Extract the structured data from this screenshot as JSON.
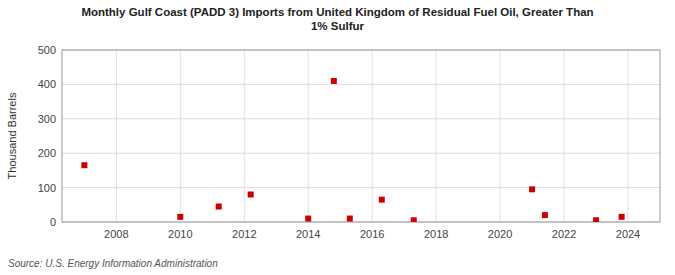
{
  "chart_data": {
    "type": "scatter",
    "title": "Monthly Gulf Coast (PADD 3) Imports from United Kingdom of Residual Fuel Oil, Greater Than\n1% Sulfur",
    "y_label": "Thousand Barrels",
    "source": "Source: U.S. Energy Information Administration",
    "x": [
      2007.0,
      2010.0,
      2011.2,
      2012.2,
      2014.0,
      2014.8,
      2015.3,
      2016.3,
      2017.3,
      2021.0,
      2021.4,
      2023.0,
      2023.8
    ],
    "values": [
      165,
      15,
      45,
      80,
      10,
      410,
      10,
      65,
      5,
      95,
      20,
      5,
      15
    ],
    "color": "#cc0000",
    "marker": "square",
    "xlim": [
      2006.3,
      2025.0
    ],
    "ylim": [
      0,
      500
    ],
    "xticks": [
      2008,
      2010,
      2012,
      2014,
      2016,
      2018,
      2020,
      2022,
      2024
    ],
    "yticks": [
      0,
      100,
      200,
      300,
      400,
      500
    ],
    "grid": true
  }
}
